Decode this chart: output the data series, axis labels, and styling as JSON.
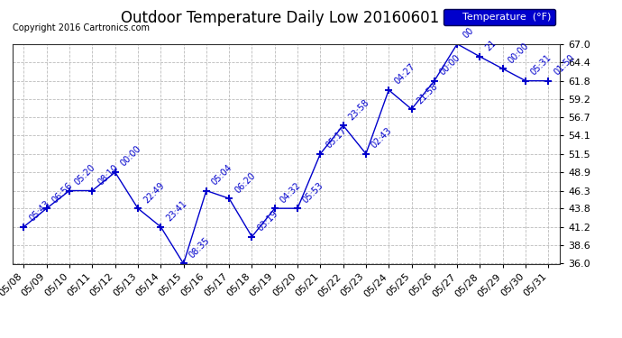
{
  "title": "Outdoor Temperature Daily Low 20160601",
  "copyright": "Copyright 2016 Cartronics.com",
  "legend_label": "Temperature  (°F)",
  "ylim": [
    36.0,
    67.0
  ],
  "yticks": [
    36.0,
    38.6,
    41.2,
    43.8,
    46.3,
    48.9,
    51.5,
    54.1,
    56.7,
    59.2,
    61.8,
    64.4,
    67.0
  ],
  "dates": [
    "05/08",
    "05/09",
    "05/10",
    "05/11",
    "05/12",
    "05/13",
    "05/14",
    "05/15",
    "05/16",
    "05/17",
    "05/18",
    "05/19",
    "05/20",
    "05/21",
    "05/22",
    "05/23",
    "05/24",
    "05/25",
    "05/26",
    "05/27",
    "05/28",
    "05/29",
    "05/30",
    "05/31"
  ],
  "values": [
    41.2,
    43.8,
    46.3,
    46.3,
    48.9,
    43.8,
    41.2,
    36.0,
    46.3,
    45.2,
    39.8,
    43.8,
    43.8,
    51.5,
    55.5,
    51.5,
    60.5,
    57.8,
    61.8,
    67.0,
    65.2,
    63.5,
    61.8,
    61.8
  ],
  "labels": [
    "05:43",
    "06:56",
    "05:20",
    "08:10",
    "00:00",
    "22:49",
    "23:41",
    "08:35",
    "05:04",
    "06:20",
    "03:19",
    "04:32",
    "05:53",
    "05:17",
    "23:58",
    "02:43",
    "04:27",
    "21:58",
    "00:00",
    "00",
    "21",
    "00:00",
    "05:31",
    "01:50"
  ],
  "line_color": "#0000cc",
  "marker": "+",
  "grid_color": "#bbbbbb",
  "background_color": "#ffffff",
  "title_fontsize": 12,
  "annot_fontsize": 7,
  "tick_fontsize": 8,
  "legend_box_color": "#0000cc",
  "legend_text_color": "#ffffff"
}
